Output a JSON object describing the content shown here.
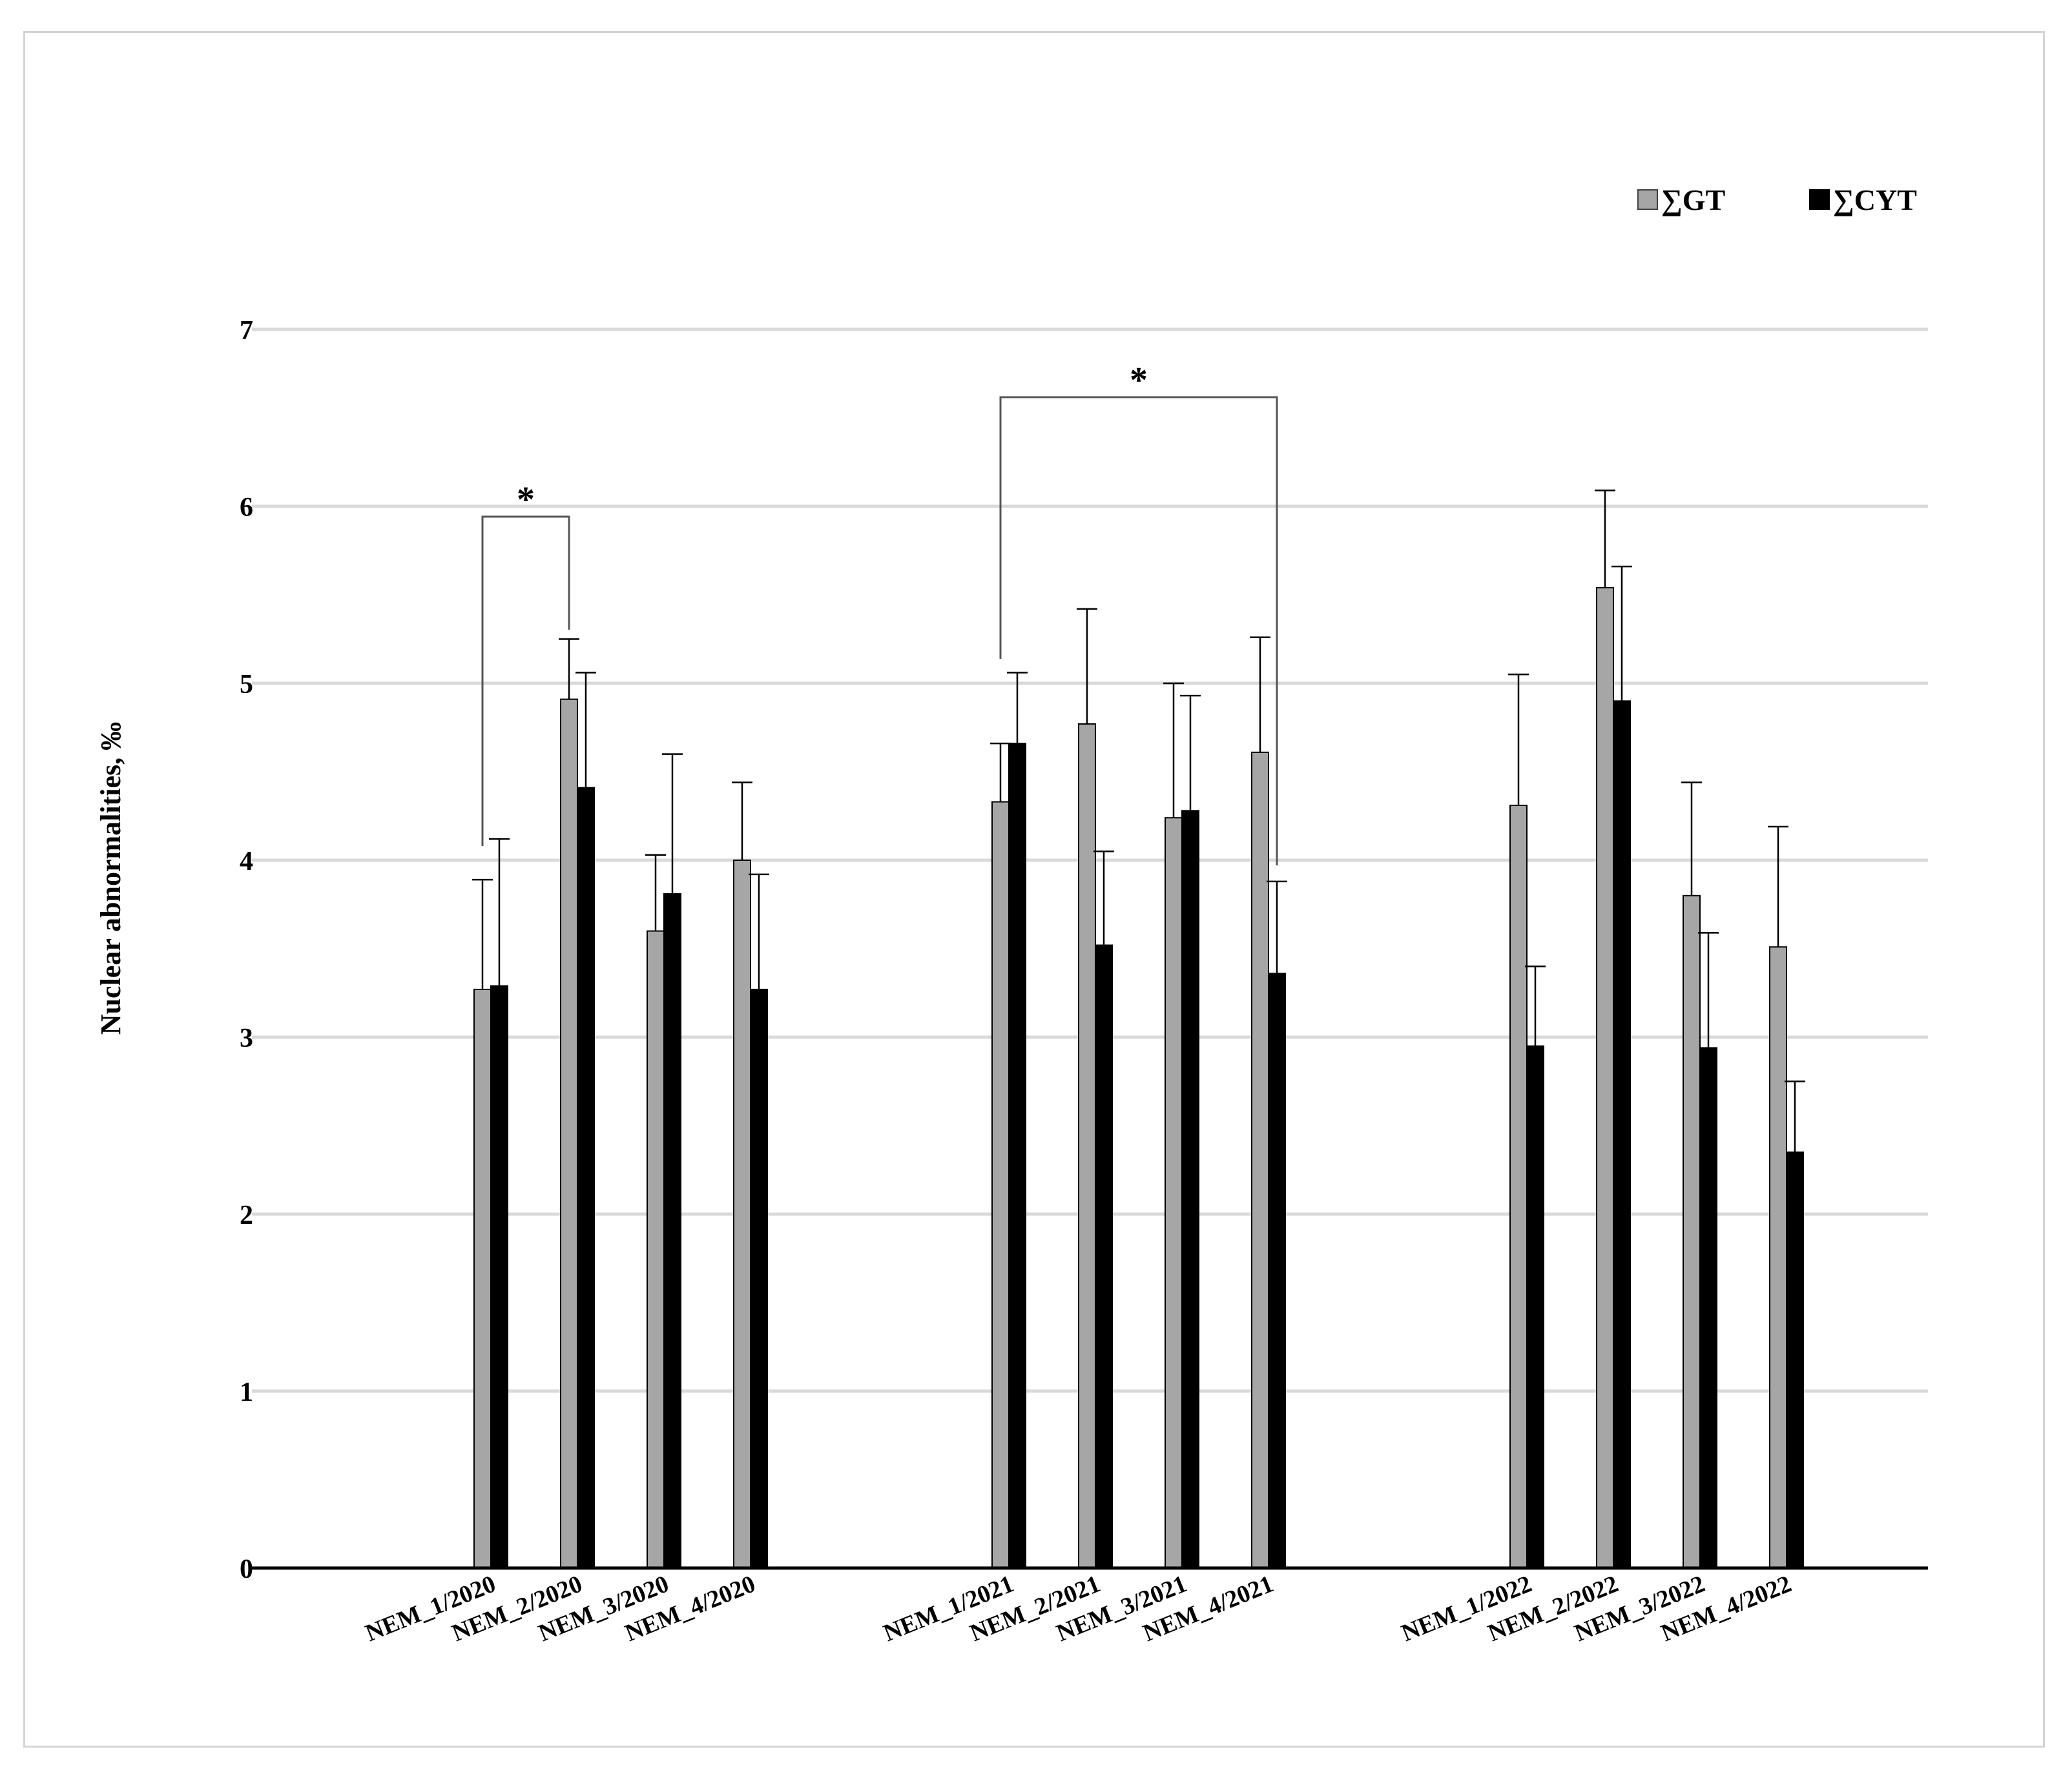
{
  "chart_data": {
    "type": "bar",
    "ylabel": "Nuclear abnormalities, ‰",
    "ylim": [
      0,
      7
    ],
    "yticks": [
      "0",
      "1",
      "2",
      "3",
      "4",
      "5",
      "6",
      "7"
    ],
    "grid": true,
    "legend_position": "top-right",
    "categories": [
      "NEM_1/2020",
      "NEM_2/2020",
      "NEM_3/2020",
      "NEM_4/2020",
      "NEM_1/2021",
      "NEM_2/2021",
      "NEM_3/2021",
      "NEM_4/2021",
      "NEM_1/2022",
      "NEM_2/2022",
      "NEM_3/2022",
      "NEM_4/2022"
    ],
    "series": [
      {
        "name": "∑GT",
        "color": "#a6a6a6",
        "values": [
          3.27,
          4.91,
          3.6,
          4.0,
          4.33,
          4.77,
          4.24,
          4.61,
          4.31,
          5.54,
          3.8,
          3.51
        ],
        "errors": [
          0.62,
          0.34,
          0.43,
          0.44,
          0.33,
          0.65,
          0.76,
          0.65,
          0.74,
          0.55,
          0.64,
          0.68
        ]
      },
      {
        "name": "∑CYT",
        "color": "#000000",
        "values": [
          3.29,
          4.41,
          3.81,
          3.27,
          4.66,
          3.52,
          4.28,
          3.36,
          2.95,
          4.9,
          2.94,
          2.35
        ],
        "errors": [
          0.83,
          0.65,
          0.79,
          0.65,
          0.4,
          0.53,
          0.65,
          0.52,
          0.45,
          0.76,
          0.65,
          0.4
        ]
      }
    ],
    "significance": [
      {
        "from": 0,
        "to": 1,
        "label": "*"
      },
      {
        "from": 4,
        "to": 7,
        "label": "*"
      }
    ]
  }
}
